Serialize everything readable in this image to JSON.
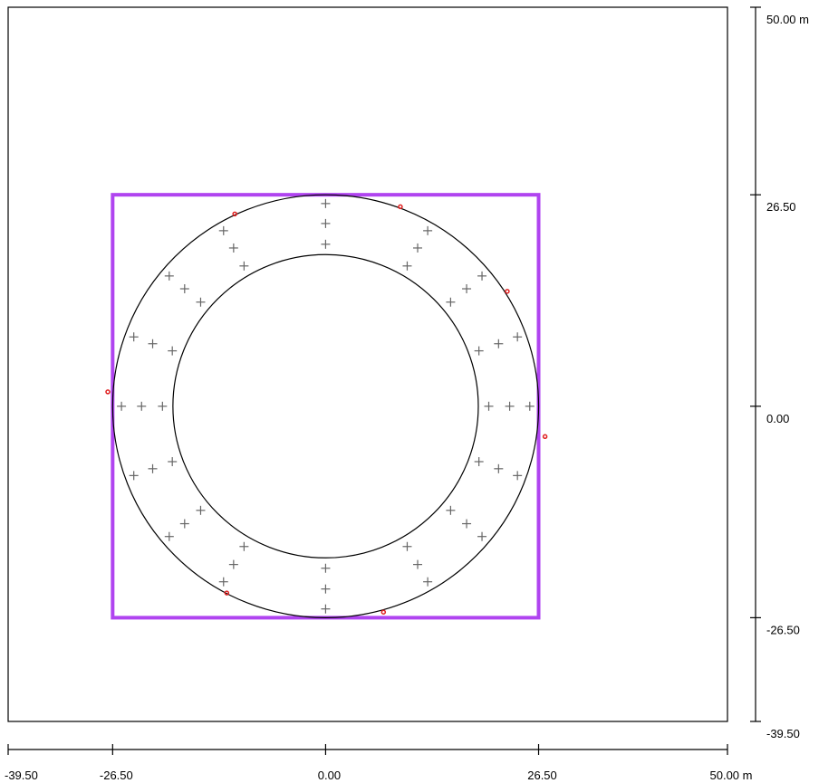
{
  "axes": {
    "x": {
      "min": -39.5,
      "max": 50.0,
      "ticks": [
        {
          "value": -39.5,
          "label": "-39.50"
        },
        {
          "value": -26.5,
          "label": "-26.50"
        },
        {
          "value": 0.0,
          "label": "0.00"
        },
        {
          "value": 26.5,
          "label": "26.50"
        },
        {
          "value": 50.0,
          "label": "50.00 m"
        }
      ]
    },
    "y": {
      "min": -39.5,
      "max": 50.0,
      "ticks": [
        {
          "value": 50.0,
          "label": "50.00 m"
        },
        {
          "value": 26.5,
          "label": "26.50"
        },
        {
          "value": 0.0,
          "label": "0.00"
        },
        {
          "value": -26.5,
          "label": "-26.50"
        },
        {
          "value": -39.5,
          "label": "-39.50"
        }
      ]
    }
  },
  "model": {
    "boundary_rect": {
      "x_min": -26.5,
      "x_max": 26.5,
      "y_min": -26.5,
      "y_max": 26.5,
      "color": "#b044f0"
    },
    "outer_circle_radius": 26.5,
    "inner_circle_radius": 19.0,
    "mesh_point_rings_radii": [
      20.3,
      22.9,
      25.4
    ],
    "mesh_point_angles_deg": [
      0,
      20,
      40,
      60,
      90,
      120,
      140,
      160,
      180,
      200,
      220,
      240,
      270,
      300,
      320,
      340
    ],
    "node_markers": [
      {
        "x": -11.3,
        "y": 24.1
      },
      {
        "x": 9.3,
        "y": 25.0
      },
      {
        "x": 22.6,
        "y": 14.4
      },
      {
        "x": -27.1,
        "y": 1.8
      },
      {
        "x": 27.3,
        "y": -3.8
      },
      {
        "x": -12.3,
        "y": -23.4
      },
      {
        "x": 7.2,
        "y": -25.8
      }
    ],
    "marker_color": "#e02020",
    "mesh_point_color": "#666666"
  }
}
